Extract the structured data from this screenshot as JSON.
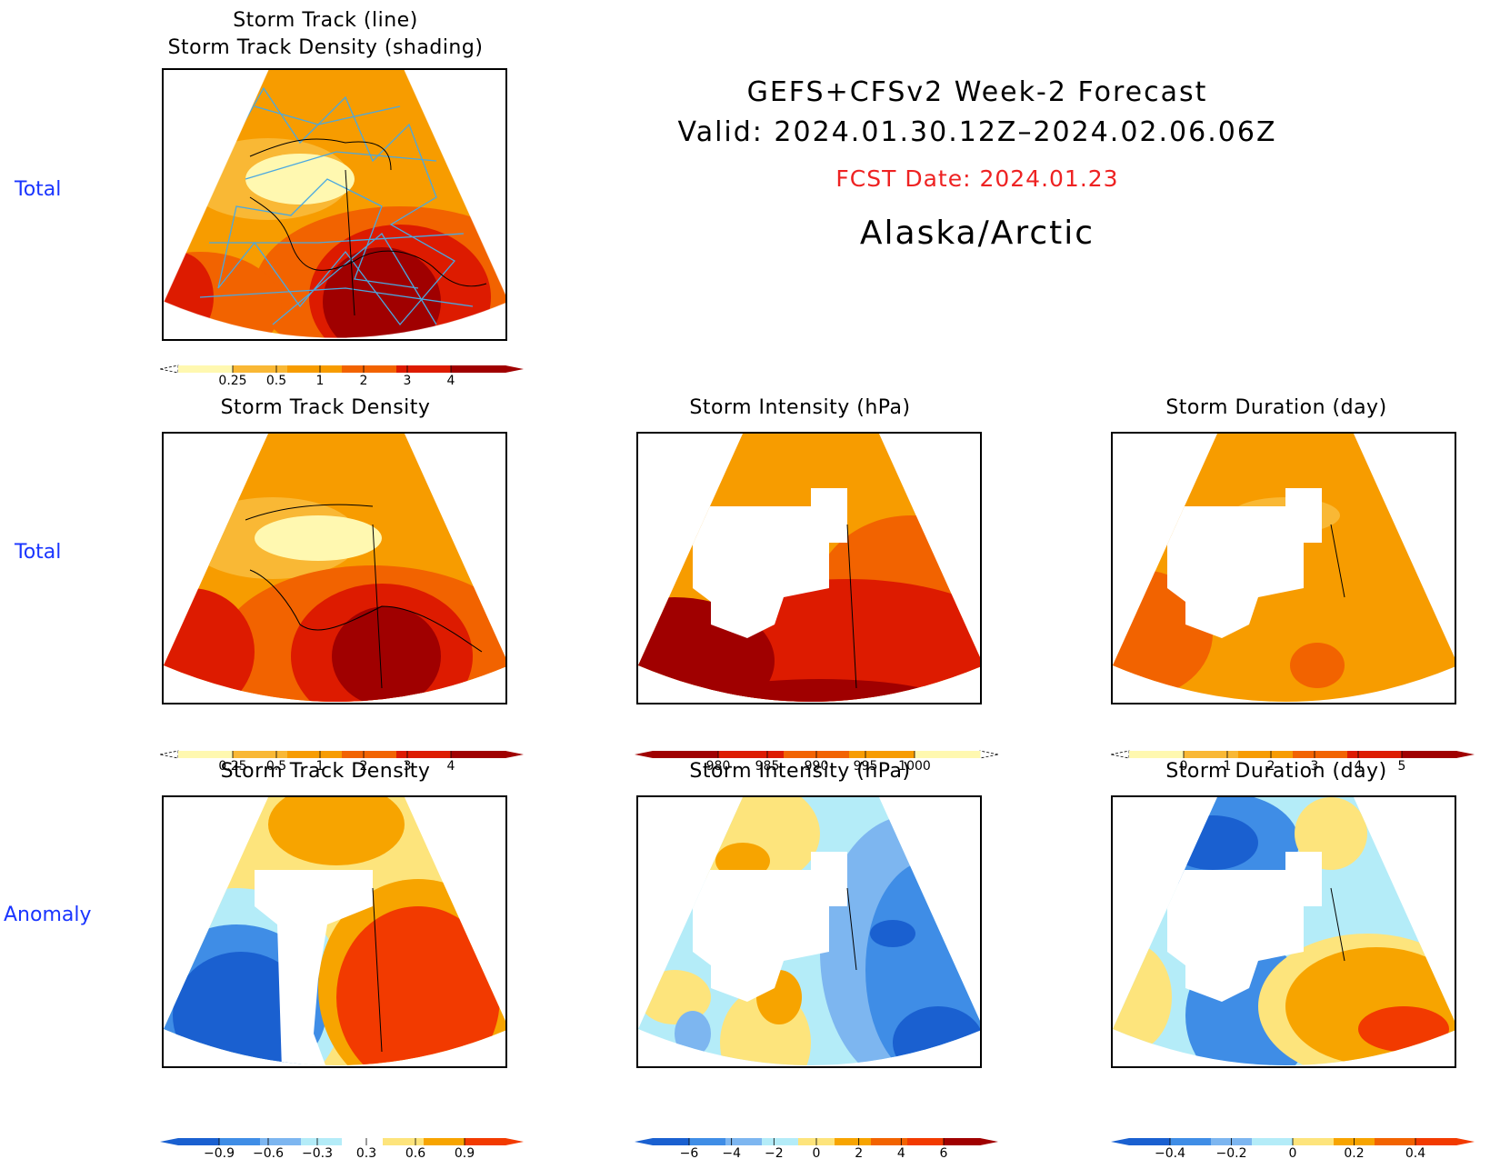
{
  "header": {
    "title": "GEFS+CFSv2 Week-2 Forecast",
    "valid": "Valid: 2024.01.30.12Z–2024.02.06.06Z",
    "fcst_date": "FCST Date: 2024.01.23",
    "region": "Alaska/Arctic"
  },
  "row_labels": [
    "Total",
    "Total",
    "Anomaly"
  ],
  "panels": {
    "top": {
      "title_line1": "Storm Track (line)",
      "title_line2": "Storm Track Density (shading)"
    },
    "r2c1": {
      "title": "Storm Track Density"
    },
    "r2c2": {
      "title": "Storm Intensity (hPa)"
    },
    "r2c3": {
      "title": "Storm Duration (day)"
    },
    "r3c1": {
      "title": "Storm Track Density"
    },
    "r3c2": {
      "title": "Storm Intensity (hPa)"
    },
    "r3c3": {
      "title": "Storm Duration (day)"
    }
  },
  "colorbars": {
    "density_total": {
      "ticks": [
        "0.25",
        "0.5",
        "1",
        "2",
        "3",
        "4"
      ],
      "colors": [
        "#fff8b0",
        "#f9b835",
        "#f79c00",
        "#f26300",
        "#dd1b00",
        "#a00000"
      ],
      "open_low": true
    },
    "intensity_total": {
      "ticks": [
        "980",
        "985",
        "990",
        "995",
        "1000"
      ],
      "colors": [
        "#a00000",
        "#dd1b00",
        "#f26300",
        "#f79c00",
        "#fff8b0"
      ],
      "open_high": true
    },
    "duration_total": {
      "ticks": [
        "0",
        "1",
        "2",
        "3",
        "4",
        "5"
      ],
      "colors": [
        "#fff8b0",
        "#f9b835",
        "#f79c00",
        "#f26300",
        "#dd1b00",
        "#a00000"
      ],
      "open_low": true
    },
    "density_anom": {
      "ticks": [
        "−0.9",
        "−0.6",
        "−0.3",
        "0.3",
        "0.6",
        "0.9"
      ],
      "colors": [
        "#1a60d0",
        "#3f8de6",
        "#7db6f0",
        "#b4ecf8",
        "#ffffff",
        "#fde47c",
        "#f7a400",
        "#f23a00"
      ]
    },
    "intensity_anom": {
      "ticks": [
        "−6",
        "−4",
        "−2",
        "0",
        "2",
        "4",
        "6"
      ],
      "colors": [
        "#1a60d0",
        "#3f8de6",
        "#7db6f0",
        "#b4ecf8",
        "#fde47c",
        "#f7a400",
        "#f26300",
        "#f23a00",
        "#a00000"
      ]
    },
    "duration_anom": {
      "ticks": [
        "−0.4",
        "−0.2",
        "0",
        "0.2",
        "0.4"
      ],
      "colors": [
        "#1a60d0",
        "#3f8de6",
        "#7db6f0",
        "#b4ecf8",
        "#fde47c",
        "#f7a400",
        "#f26300",
        "#f23a00"
      ]
    }
  },
  "palette": {
    "red_dark": "#a00000",
    "red": "#dd1b00",
    "orange_red": "#f26300",
    "orange": "#f79c00",
    "light_orange": "#f9b835",
    "pale_yellow": "#fff8b0",
    "yellow": "#fde47c",
    "light_cyan": "#b4ecf8",
    "light_blue": "#7db6f0",
    "blue": "#3f8de6",
    "dark_blue": "#1a60d0",
    "bright_red": "#f23a00",
    "track_line": "#4aa8e0",
    "label_blue": "#1a35ff",
    "fcst_red": "#ee2222"
  }
}
